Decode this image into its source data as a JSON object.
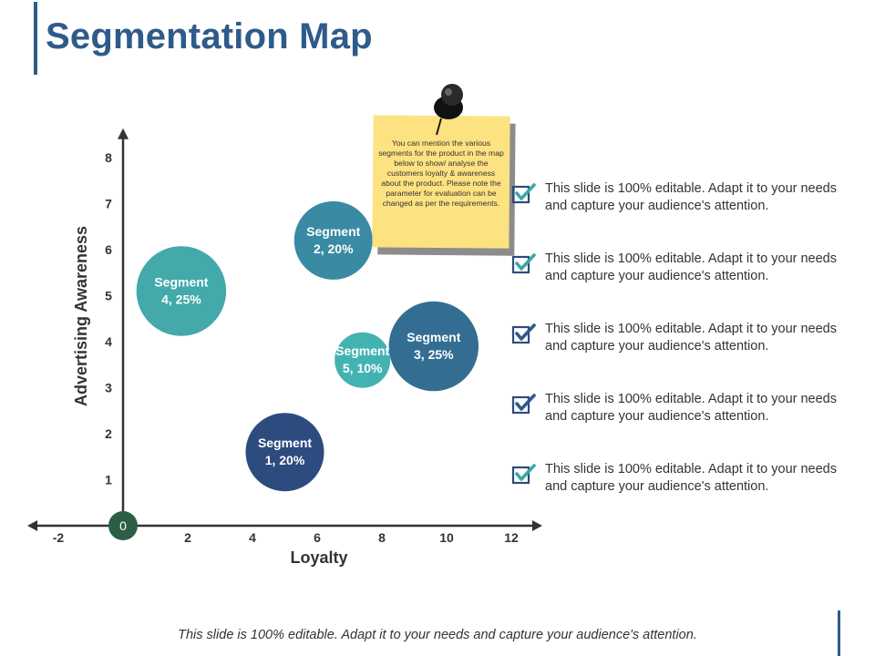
{
  "title": "Segmentation Map",
  "footer": "This slide is 100% editable. Adapt it to your needs and capture your audience's attention.",
  "note": {
    "text": "You can mention the various segments for the product in the map below to show/ analyse the customers loyalty & awareness about the product. Please note the parameter for evaluation can be changed as per the requirements."
  },
  "checklist": [
    {
      "text": "This slide is 100% editable. Adapt it to your needs and capture your audience's attention.",
      "icon": "check-icon",
      "color": "#3aa8a8"
    },
    {
      "text": "This slide is 100% editable. Adapt it to your needs and capture your audience's attention.",
      "icon": "check-icon",
      "color": "#3aa8a8"
    },
    {
      "text": "This slide is 100% editable. Adapt it to your needs and capture your audience's attention.",
      "icon": "check-icon",
      "color": "#2e5b8a"
    },
    {
      "text": "This slide is 100% editable. Adapt it to your needs and capture your audience's attention.",
      "icon": "check-icon",
      "color": "#2e5b8a"
    },
    {
      "text": "This slide is 100% editable. Adapt it to your needs and capture your audience's attention.",
      "icon": "check-icon",
      "color": "#3aa8a8"
    }
  ],
  "chart_data": {
    "type": "scatter",
    "xlabel": "Loyalty",
    "ylabel": "Advertising Awareness",
    "origin_label": "0",
    "xticks": [
      -2,
      2,
      4,
      6,
      8,
      10,
      12
    ],
    "yticks": [
      1,
      2,
      3,
      4,
      5,
      6,
      7,
      8
    ],
    "xlim": [
      -2.9,
      12.9
    ],
    "ylim": [
      0,
      8.6
    ],
    "grid": false,
    "points": [
      {
        "label": "Segment 1, 20%",
        "lines": [
          "Segment",
          "1, 20%"
        ],
        "x": 5,
        "y": 1.6,
        "share": 20,
        "color": "#2e4b7f"
      },
      {
        "label": "Segment 2, 20%",
        "lines": [
          "Segment",
          "2, 20%"
        ],
        "x": 6.5,
        "y": 6.2,
        "share": 20,
        "color": "#3a8aa3"
      },
      {
        "label": "Segment 3, 25%",
        "lines": [
          "Segment",
          "3, 25%"
        ],
        "x": 9.6,
        "y": 3.9,
        "share": 25,
        "color": "#336e92"
      },
      {
        "label": "Segment 4, 25%",
        "lines": [
          "Segment",
          "4, 25%"
        ],
        "x": 1.8,
        "y": 5.1,
        "share": 25,
        "color": "#43a9ab"
      },
      {
        "label": "Segment 5, 10%",
        "lines": [
          "Segment",
          "5, 10%"
        ],
        "x": 7.4,
        "y": 3.6,
        "share": 10,
        "color": "#43b3b2"
      }
    ],
    "colors": {
      "axis": "#333333",
      "origin": "#2c5e45"
    }
  }
}
